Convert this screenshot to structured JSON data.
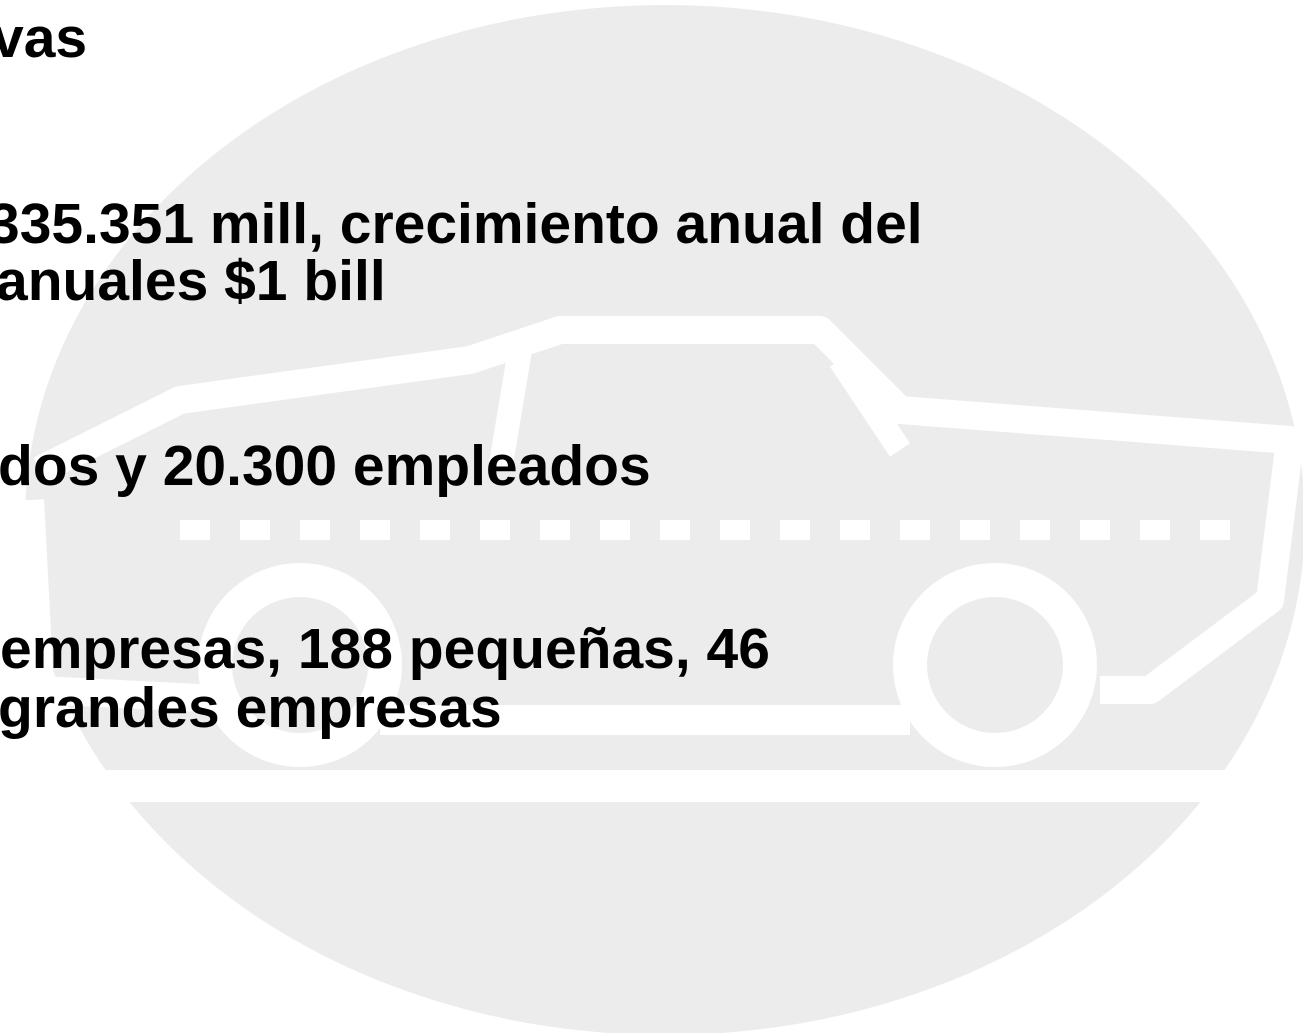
{
  "lines": [
    "vas",
    "335.351 mill, crecimiento anual del",
    "anuales $1 bill",
    "dos y 20.300 empleados",
    "empresas, 188 pequeñas, 46",
    "grandes empresas"
  ]
}
